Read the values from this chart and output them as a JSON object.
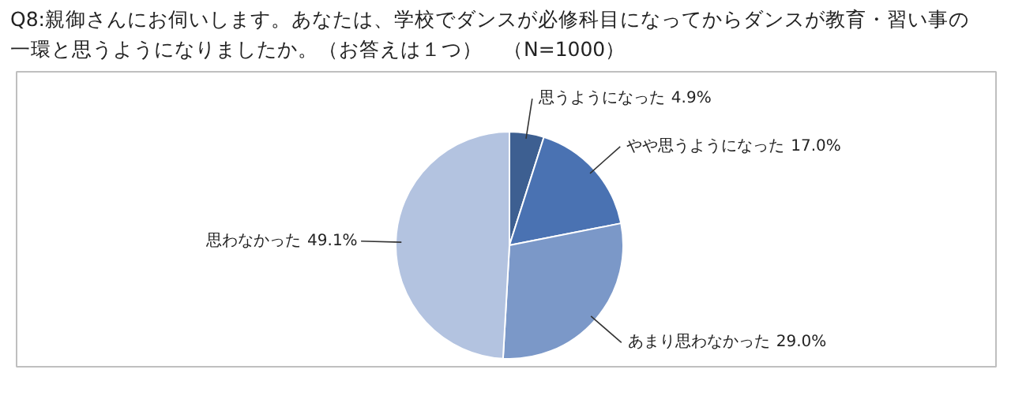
{
  "chart_data": {
    "type": "pie",
    "title": "Q8:親御さんにお伺いします。あなたは、学校でダンスが必修科目になってからダンスが教育・習い事の一環と思うようになりましたか。（お答えは１つ）　（N=1000）",
    "categories": [
      "思うようになった",
      "やや思うようになった",
      "あまり思わなかった",
      "思わなかった"
    ],
    "values": [
      4.9,
      17.0,
      29.0,
      49.1
    ],
    "colors": [
      "#3d5f91",
      "#4a72b2",
      "#7b98c8",
      "#b3c3e0"
    ],
    "value_labels": [
      "4.9%",
      "17.0%",
      "29.0%",
      "49.1%"
    ]
  }
}
